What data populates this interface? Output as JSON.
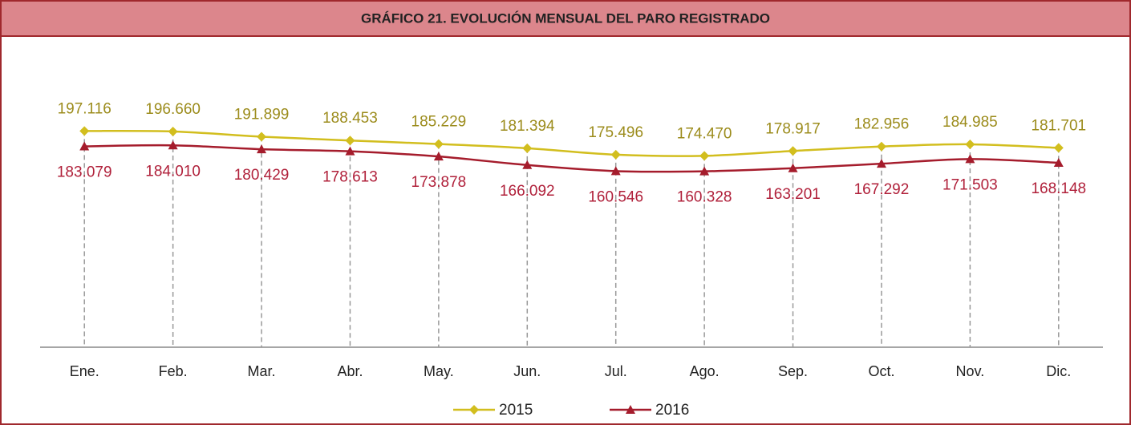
{
  "chart_data": {
    "type": "line",
    "title": "GRÁFICO 21. EVOLUCIÓN MENSUAL DEL PARO REGISTRADO",
    "categories": [
      "Ene.",
      "Feb.",
      "Mar.",
      "Abr.",
      "May.",
      "Jun.",
      "Jul.",
      "Ago.",
      "Sep.",
      "Oct.",
      "Nov.",
      "Dic."
    ],
    "series": [
      {
        "name": "2015",
        "color": "#d2be1e",
        "label_color": "#9c8c1c",
        "marker": "diamond",
        "values": [
          197116,
          196660,
          191899,
          188453,
          185229,
          181394,
          175496,
          174470,
          178917,
          182956,
          184985,
          181701
        ],
        "value_labels": [
          "197.116",
          "196.660",
          "191.899",
          "188.453",
          "185.229",
          "181.394",
          "175.496",
          "174.470",
          "178.917",
          "182.956",
          "184.985",
          "181.701"
        ]
      },
      {
        "name": "2016",
        "color": "#a51c2c",
        "label_color": "#b0203a",
        "marker": "triangle",
        "values": [
          183079,
          184010,
          180429,
          178613,
          173878,
          166092,
          160546,
          160328,
          163201,
          167292,
          171503,
          168148
        ],
        "value_labels": [
          "183.079",
          "184.010",
          "180.429",
          "178.613",
          "173.878",
          "166.092",
          "160.546",
          "160.328",
          "163.201",
          "167.292",
          "171.503",
          "168.148"
        ]
      }
    ],
    "ylim": [
      0,
      250000
    ],
    "legend": "bottom"
  }
}
